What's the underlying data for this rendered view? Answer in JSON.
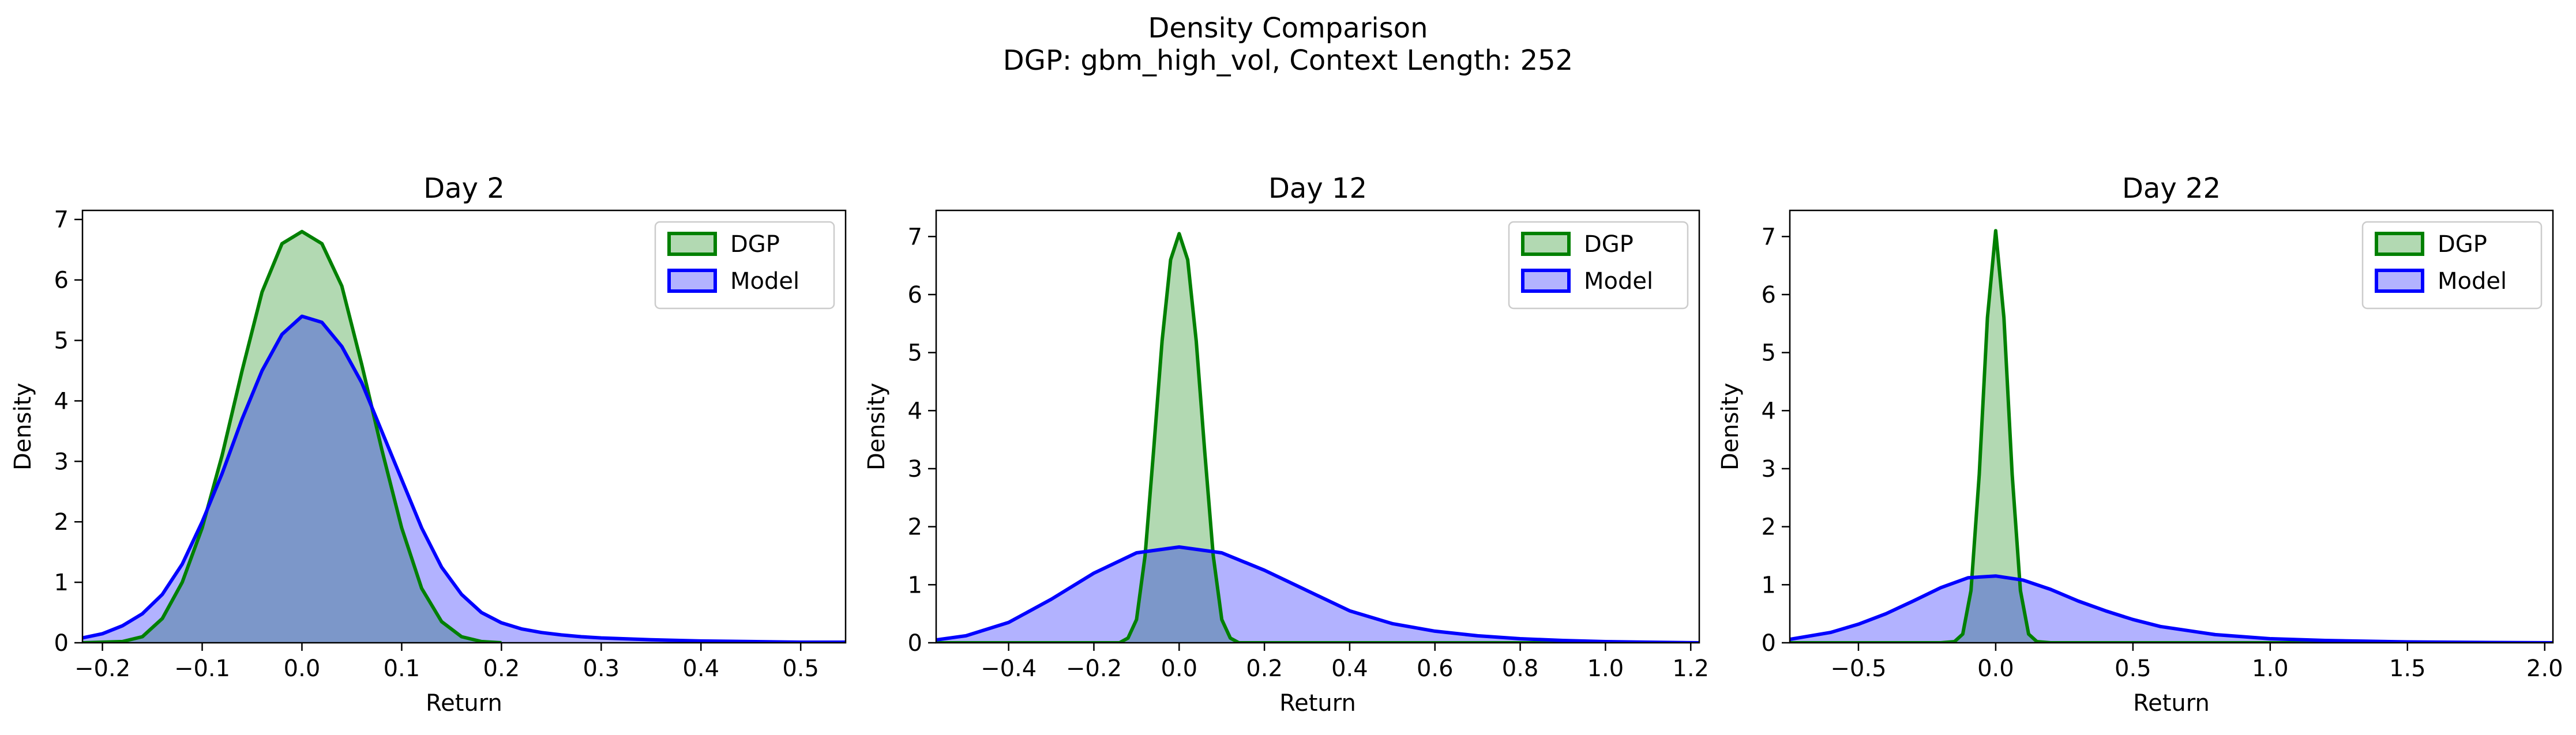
{
  "figure": {
    "title_line1": "Density Comparison",
    "title_line2": "DGP: gbm_high_vol, Context Length: 252"
  },
  "colors": {
    "dgp_line": "#008000",
    "dgp_fill": "#008000",
    "model_line": "#0000ff",
    "model_fill": "#0000ff"
  },
  "chart_data": [
    {
      "type": "area",
      "title": "Day 2",
      "xlabel": "Return",
      "ylabel": "Density",
      "xlim": [
        -0.22,
        0.545
      ],
      "ylim": [
        0,
        7.15
      ],
      "xticks": [
        -0.2,
        -0.1,
        0.0,
        0.1,
        0.2,
        0.3,
        0.4,
        0.5
      ],
      "xtick_labels": [
        "−0.2",
        "−0.1",
        "0.0",
        "0.1",
        "0.2",
        "0.3",
        "0.4",
        "0.5"
      ],
      "yticks": [
        0,
        1,
        2,
        3,
        4,
        5,
        6,
        7
      ],
      "ytick_labels": [
        "0",
        "1",
        "2",
        "3",
        "4",
        "5",
        "6",
        "7"
      ],
      "legend": {
        "placement": "top-right",
        "entries": [
          "DGP",
          "Model"
        ]
      },
      "series": [
        {
          "name": "DGP",
          "x": [
            -0.22,
            -0.18,
            -0.16,
            -0.14,
            -0.12,
            -0.1,
            -0.08,
            -0.06,
            -0.04,
            -0.02,
            0.0,
            0.02,
            0.04,
            0.06,
            0.08,
            0.1,
            0.12,
            0.14,
            0.16,
            0.18,
            0.2
          ],
          "y": [
            0.0,
            0.02,
            0.1,
            0.4,
            1.0,
            1.9,
            3.1,
            4.5,
            5.8,
            6.6,
            6.8,
            6.6,
            5.9,
            4.6,
            3.2,
            1.9,
            0.9,
            0.35,
            0.1,
            0.02,
            0.0
          ]
        },
        {
          "name": "Model",
          "x": [
            -0.22,
            -0.2,
            -0.18,
            -0.16,
            -0.14,
            -0.12,
            -0.1,
            -0.08,
            -0.06,
            -0.04,
            -0.02,
            0.0,
            0.02,
            0.04,
            0.06,
            0.08,
            0.1,
            0.12,
            0.14,
            0.16,
            0.18,
            0.2,
            0.22,
            0.24,
            0.26,
            0.28,
            0.3,
            0.35,
            0.4,
            0.45,
            0.5,
            0.545
          ],
          "y": [
            0.08,
            0.15,
            0.28,
            0.48,
            0.8,
            1.3,
            2.0,
            2.8,
            3.7,
            4.5,
            5.1,
            5.4,
            5.3,
            4.9,
            4.3,
            3.5,
            2.7,
            1.9,
            1.25,
            0.8,
            0.5,
            0.33,
            0.23,
            0.17,
            0.13,
            0.1,
            0.08,
            0.05,
            0.03,
            0.02,
            0.01,
            0.01
          ]
        }
      ]
    },
    {
      "type": "area",
      "title": "Day 12",
      "xlabel": "Return",
      "ylabel": "Density",
      "xlim": [
        -0.57,
        1.22
      ],
      "ylim": [
        0,
        7.45
      ],
      "xticks": [
        -0.4,
        -0.2,
        0.0,
        0.2,
        0.4,
        0.6,
        0.8,
        1.0,
        1.2
      ],
      "xtick_labels": [
        "−0.4",
        "−0.2",
        "0.0",
        "0.2",
        "0.4",
        "0.6",
        "0.8",
        "1.0",
        "1.2"
      ],
      "yticks": [
        0,
        1,
        2,
        3,
        4,
        5,
        6,
        7
      ],
      "ytick_labels": [
        "0",
        "1",
        "2",
        "3",
        "4",
        "5",
        "6",
        "7"
      ],
      "legend": {
        "placement": "top-right",
        "entries": [
          "DGP",
          "Model"
        ]
      },
      "series": [
        {
          "name": "DGP",
          "x": [
            -0.57,
            -0.14,
            -0.12,
            -0.1,
            -0.08,
            -0.06,
            -0.04,
            -0.02,
            0.0,
            0.02,
            0.04,
            0.06,
            0.08,
            0.1,
            0.12,
            0.14,
            1.22
          ],
          "y": [
            0.0,
            0.0,
            0.08,
            0.4,
            1.5,
            3.3,
            5.2,
            6.6,
            7.05,
            6.6,
            5.2,
            3.3,
            1.5,
            0.4,
            0.08,
            0.0,
            0.0
          ]
        },
        {
          "name": "Model",
          "x": [
            -0.57,
            -0.5,
            -0.4,
            -0.3,
            -0.2,
            -0.1,
            0.0,
            0.1,
            0.2,
            0.3,
            0.4,
            0.5,
            0.6,
            0.7,
            0.8,
            0.9,
            1.0,
            1.1,
            1.22
          ],
          "y": [
            0.05,
            0.12,
            0.35,
            0.75,
            1.2,
            1.55,
            1.65,
            1.55,
            1.25,
            0.9,
            0.55,
            0.33,
            0.2,
            0.12,
            0.07,
            0.04,
            0.02,
            0.01,
            0.0
          ]
        }
      ]
    },
    {
      "type": "area",
      "title": "Day 22",
      "xlabel": "Return",
      "ylabel": "Density",
      "xlim": [
        -0.75,
        2.03
      ],
      "ylim": [
        0,
        7.45
      ],
      "xticks": [
        -0.5,
        0.0,
        0.5,
        1.0,
        1.5,
        2.0
      ],
      "xtick_labels": [
        "−0.5",
        "0.0",
        "0.5",
        "1.0",
        "1.5",
        "2.0"
      ],
      "yticks": [
        0,
        1,
        2,
        3,
        4,
        5,
        6,
        7
      ],
      "ytick_labels": [
        "0",
        "1",
        "2",
        "3",
        "4",
        "5",
        "6",
        "7"
      ],
      "legend": {
        "placement": "top-right",
        "entries": [
          "DGP",
          "Model"
        ]
      },
      "series": [
        {
          "name": "DGP",
          "x": [
            -0.75,
            -0.2,
            -0.15,
            -0.12,
            -0.09,
            -0.06,
            -0.03,
            0.0,
            0.03,
            0.06,
            0.09,
            0.12,
            0.15,
            0.2,
            2.03
          ],
          "y": [
            0.0,
            0.0,
            0.02,
            0.15,
            0.9,
            2.9,
            5.6,
            7.1,
            5.6,
            2.9,
            0.9,
            0.15,
            0.02,
            0.0,
            0.0
          ]
        },
        {
          "name": "Model",
          "x": [
            -0.75,
            -0.6,
            -0.5,
            -0.4,
            -0.3,
            -0.2,
            -0.1,
            0.0,
            0.1,
            0.2,
            0.3,
            0.4,
            0.5,
            0.6,
            0.8,
            1.0,
            1.2,
            1.5,
            1.8,
            2.03
          ],
          "y": [
            0.06,
            0.18,
            0.32,
            0.5,
            0.72,
            0.95,
            1.12,
            1.15,
            1.08,
            0.92,
            0.72,
            0.55,
            0.4,
            0.28,
            0.14,
            0.07,
            0.04,
            0.015,
            0.005,
            0.0
          ]
        }
      ]
    }
  ]
}
